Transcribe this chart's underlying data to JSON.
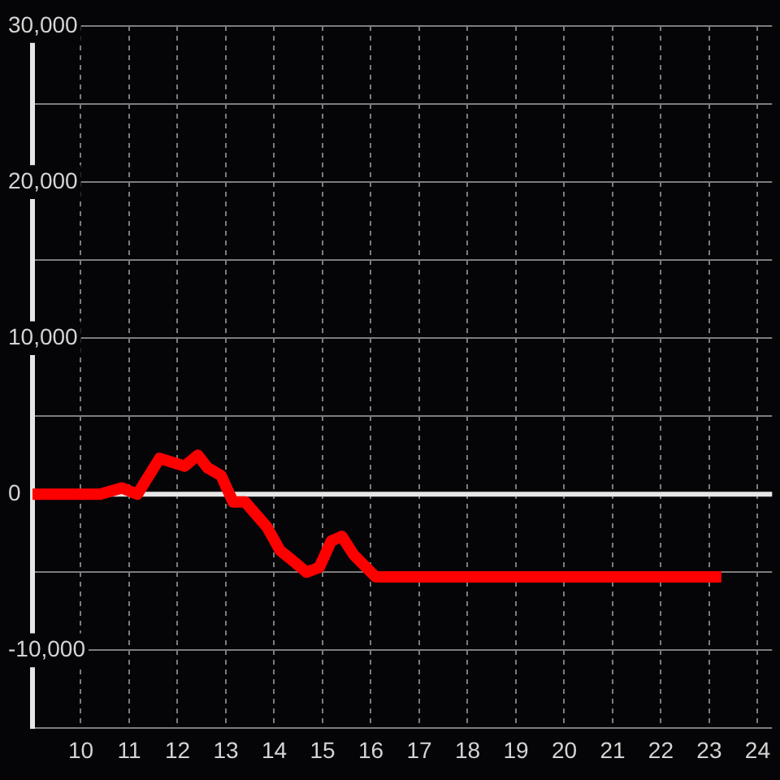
{
  "chart_data": {
    "type": "line",
    "x": [
      9,
      10.4,
      10.85,
      11.17,
      11.63,
      12.15,
      12.42,
      12.62,
      12.9,
      13.15,
      13.4,
      13.85,
      14.12,
      14.4,
      14.67,
      14.93,
      15.18,
      15.4,
      15.65,
      16.1,
      23.25
    ],
    "series": [
      {
        "color": "#ff0000",
        "values": [
          0,
          0,
          400,
          0,
          2300,
          1800,
          2500,
          1700,
          1200,
          -500,
          -500,
          -2100,
          -3600,
          -4300,
          -5000,
          -4700,
          -3000,
          -2700,
          -3900,
          -5300,
          -5300
        ]
      }
    ],
    "xlim": [
      9,
      24.3
    ],
    "xticks": [
      10,
      11,
      12,
      13,
      14,
      15,
      16,
      17,
      18,
      19,
      20,
      21,
      22,
      23,
      24
    ],
    "ylim": [
      -15000,
      30000
    ],
    "yticks": [
      {
        "value": -15000,
        "label": null
      },
      {
        "value": -10000,
        "label": "-10,000"
      },
      {
        "value": -5000,
        "label": null
      },
      0,
      {
        "value": 5000,
        "label": null
      },
      {
        "value": 10000,
        "label": "10,000"
      },
      {
        "value": 15000,
        "label": null
      },
      {
        "value": 20000,
        "label": "20,000"
      },
      {
        "value": 25000,
        "label": null
      },
      {
        "value": 30000,
        "label": "30,000"
      }
    ],
    "grid": true,
    "marker": "none",
    "ref_lines": [
      {
        "axis": "y",
        "value": 0,
        "color": "#e6e6e6"
      }
    ]
  }
}
